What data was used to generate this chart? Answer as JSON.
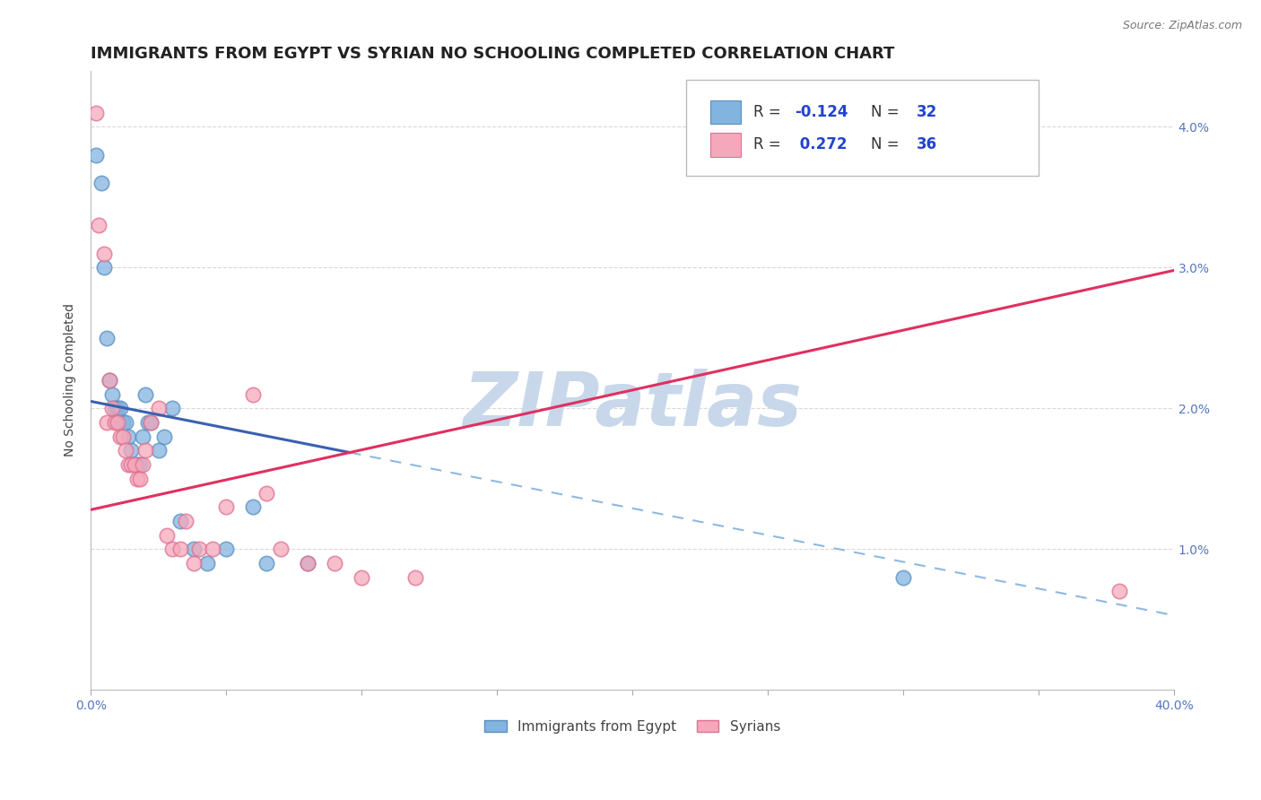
{
  "title": "IMMIGRANTS FROM EGYPT VS SYRIAN NO SCHOOLING COMPLETED CORRELATION CHART",
  "source": "Source: ZipAtlas.com",
  "ylabel": "No Schooling Completed",
  "xlim": [
    0.0,
    0.4
  ],
  "ylim": [
    0.0,
    0.044
  ],
  "y_ticks": [
    0.01,
    0.02,
    0.03,
    0.04
  ],
  "y_tick_labels_right": [
    "1.0%",
    "2.0%",
    "3.0%",
    "4.0%"
  ],
  "x_ticks": [
    0.0,
    0.05,
    0.1,
    0.15,
    0.2,
    0.25,
    0.3,
    0.35,
    0.4
  ],
  "legend_blue_r": "-0.124",
  "legend_blue_n": "32",
  "legend_pink_r": "0.272",
  "legend_pink_n": "36",
  "blue_color": "#82b4e0",
  "pink_color": "#f5a8bb",
  "blue_edge_color": "#5a8fc0",
  "pink_edge_color": "#e07090",
  "trend_blue_color": "#3a60b0",
  "trend_blue_dash_color": "#90b8e0",
  "trend_pink_color": "#e03060",
  "background_color": "#ffffff",
  "watermark": "ZIPatlas",
  "watermark_color": "#c8d8ea",
  "blue_scatter_x": [
    0.002,
    0.004,
    0.005,
    0.006,
    0.007,
    0.008,
    0.009,
    0.01,
    0.01,
    0.011,
    0.012,
    0.013,
    0.014,
    0.015,
    0.016,
    0.017,
    0.018,
    0.019,
    0.02,
    0.021,
    0.022,
    0.025,
    0.027,
    0.03,
    0.033,
    0.038,
    0.043,
    0.05,
    0.06,
    0.065,
    0.08,
    0.3
  ],
  "blue_scatter_y": [
    0.038,
    0.036,
    0.03,
    0.025,
    0.022,
    0.021,
    0.02,
    0.02,
    0.019,
    0.02,
    0.019,
    0.019,
    0.018,
    0.017,
    0.016,
    0.016,
    0.016,
    0.018,
    0.021,
    0.019,
    0.019,
    0.017,
    0.018,
    0.02,
    0.012,
    0.01,
    0.009,
    0.01,
    0.013,
    0.009,
    0.009,
    0.008
  ],
  "pink_scatter_x": [
    0.002,
    0.003,
    0.005,
    0.006,
    0.007,
    0.008,
    0.009,
    0.01,
    0.011,
    0.012,
    0.013,
    0.014,
    0.015,
    0.016,
    0.017,
    0.018,
    0.019,
    0.02,
    0.022,
    0.025,
    0.028,
    0.03,
    0.033,
    0.035,
    0.038,
    0.04,
    0.045,
    0.05,
    0.06,
    0.065,
    0.07,
    0.08,
    0.09,
    0.1,
    0.12,
    0.38
  ],
  "pink_scatter_y": [
    0.041,
    0.033,
    0.031,
    0.019,
    0.022,
    0.02,
    0.019,
    0.019,
    0.018,
    0.018,
    0.017,
    0.016,
    0.016,
    0.016,
    0.015,
    0.015,
    0.016,
    0.017,
    0.019,
    0.02,
    0.011,
    0.01,
    0.01,
    0.012,
    0.009,
    0.01,
    0.01,
    0.013,
    0.021,
    0.014,
    0.01,
    0.009,
    0.009,
    0.008,
    0.008,
    0.007
  ],
  "blue_trend_y_start": 0.0205,
  "blue_trend_y_end": 0.0053,
  "pink_trend_y_start": 0.0128,
  "pink_trend_y_end": 0.0298,
  "grid_color": "#d0d0d0",
  "title_fontsize": 13,
  "axis_label_fontsize": 10,
  "tick_fontsize": 10,
  "watermark_fontsize": 60,
  "legend_r_color": "#2244cc",
  "legend_n_color": "#2244cc",
  "legend_label_color": "#333333"
}
